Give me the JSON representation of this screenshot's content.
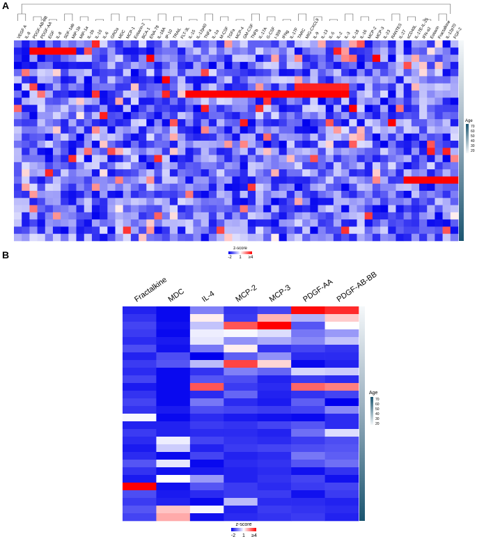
{
  "panel_a": {
    "letter": "A",
    "legend": {
      "title": "z-score",
      "ticks": [
        "-2",
        "1",
        "≥4"
      ]
    },
    "age_legend": {
      "title": "Age",
      "ticks": [
        "70",
        "60",
        "50",
        "40",
        "30",
        "20"
      ]
    }
  },
  "panel_b": {
    "letter": "B",
    "legend": {
      "title": "z-score",
      "ticks": [
        "-2",
        "1",
        "≥4"
      ]
    },
    "age_legend": {
      "title": "Age",
      "ticks": [
        "70",
        "60",
        "50",
        "40",
        "30",
        "20"
      ]
    }
  },
  "colors": {
    "low": "#0000ee",
    "mid": "#ffffff",
    "high": "#ff0000",
    "age_low": "#f5f8fa",
    "age_high": "#1a5570",
    "dendrogram": "#555555"
  },
  "chart_data": [
    {
      "type": "heatmap",
      "panel": "A",
      "value_label": "z-score",
      "color_scale": {
        "min": -2,
        "mid": 1,
        "max": 4
      },
      "columns": [
        "VEGF A",
        "IL-8",
        "PDGF-AB-BB",
        "PDGF-AA",
        "EGF",
        "IL-8",
        "SDF-1ab",
        "MIP-1b",
        "MIP-1a",
        "IL-1b",
        "IL-10",
        "IL-6",
        "GROa",
        "MDC",
        "MCP-1",
        "Eotaxin-2",
        "BCA-1",
        "ENA-78",
        "IL-18A",
        "IP-10",
        "TRAIL",
        "FLT-3L",
        "IL-15",
        "IL-12p40",
        "TNFa",
        "IL-1a",
        "M-CSF",
        "TGFa",
        "MCP-4",
        "GM-CSF",
        "TNFb",
        "IL-17A",
        "G-CSF",
        "I-309",
        "IFNg",
        "IL-17F",
        "TARC",
        "MIG-CXCL9",
        "IL-9",
        "IL-13",
        "IL-5",
        "IL-2",
        "IL-3",
        "IL-18",
        "IL-16",
        "MCP-2",
        "MCP-3",
        "IL-23",
        "RANTES",
        "IL-27",
        "sCD40L",
        "IL-17E-IL-25",
        "IFN-a2",
        "Eotaxin",
        "Fractalkine",
        "IL-12p70",
        "FGF-2"
      ],
      "rows": 28,
      "age_annotation": {
        "title": "Age",
        "range": [
          20,
          70
        ]
      }
    },
    {
      "type": "heatmap",
      "panel": "B",
      "value_label": "z-score",
      "color_scale": {
        "min": -2,
        "mid": 1,
        "max": 4
      },
      "columns": [
        "Fractalkine",
        "MDC",
        "IL-4",
        "MCP-2",
        "MCP-3",
        "PDGF-AA",
        "PDGF-AB-BB"
      ],
      "rows": 28,
      "age_annotation": {
        "title": "Age",
        "range": [
          20,
          70
        ]
      },
      "values": [
        [
          -1.6,
          -1.9,
          -0.5,
          -1.4,
          -1.2,
          3.9,
          3.5
        ],
        [
          -1.4,
          -1.9,
          1.2,
          -1.3,
          1.9,
          0.1,
          1.6
        ],
        [
          -1.2,
          -1.8,
          0.3,
          3.0,
          4.0,
          -1.0,
          1.0
        ],
        [
          -1.3,
          -1.9,
          0.8,
          0.9,
          0.6,
          -0.6,
          -0.2
        ],
        [
          -1.5,
          -1.7,
          0.7,
          -0.3,
          0.0,
          -0.4,
          0.3
        ],
        [
          -1.1,
          -1.8,
          -0.6,
          1.2,
          -1.4,
          -1.2,
          -1.4
        ],
        [
          -1.6,
          -1.1,
          -2.0,
          -0.9,
          -0.3,
          -1.5,
          -1.5
        ],
        [
          -1.3,
          -1.0,
          0.2,
          3.2,
          1.5,
          -1.9,
          -1.6
        ],
        [
          -1.5,
          -1.9,
          -1.4,
          -0.5,
          -0.8,
          0.5,
          0.4
        ],
        [
          -1.2,
          -1.9,
          -1.0,
          -1.1,
          -1.6,
          -1.3,
          -1.5
        ],
        [
          -1.7,
          -1.9,
          3.0,
          -1.3,
          -1.5,
          2.8,
          2.5
        ],
        [
          -1.4,
          -1.9,
          -1.5,
          -0.8,
          -1.6,
          -1.4,
          -1.2
        ],
        [
          -1.2,
          -1.9,
          -0.6,
          -1.5,
          -1.7,
          -0.9,
          -2.0
        ],
        [
          -1.4,
          -1.7,
          -1.1,
          -1.2,
          -1.3,
          -1.2,
          -0.4
        ],
        [
          0.9,
          -1.9,
          -1.5,
          -1.7,
          -1.8,
          -1.9,
          -1.5
        ],
        [
          -1.6,
          -1.6,
          -1.3,
          -1.4,
          -1.2,
          -1.0,
          -1.5
        ],
        [
          -1.3,
          -1.6,
          -1.5,
          -1.5,
          -1.6,
          -0.7,
          0.6
        ],
        [
          -1.5,
          0.8,
          -1.2,
          -1.4,
          -1.5,
          -1.3,
          -1.1
        ],
        [
          -1.7,
          0.4,
          -1.6,
          -1.3,
          -1.2,
          -1.1,
          -1.0
        ],
        [
          -1.5,
          -1.9,
          -1.2,
          -1.6,
          -1.5,
          -0.6,
          -0.9
        ],
        [
          -1.0,
          0.7,
          -1.9,
          -1.5,
          -1.4,
          -1.0,
          -0.7
        ],
        [
          -1.4,
          -1.8,
          -1.7,
          -1.6,
          -1.5,
          -1.8,
          -1.4
        ],
        [
          -1.7,
          1.0,
          -0.2,
          -1.6,
          -1.4,
          -1.2,
          -1.8
        ],
        [
          4.0,
          -1.8,
          -1.0,
          -1.3,
          -1.5,
          -1.3,
          -1.2
        ],
        [
          -1.1,
          -1.7,
          -1.5,
          -1.3,
          -1.3,
          -1.8,
          -1.3
        ],
        [
          -1.3,
          -1.6,
          -1.9,
          0.2,
          -1.5,
          -1.5,
          -1.6
        ],
        [
          -1.0,
          1.7,
          0.9,
          -1.6,
          -1.3,
          -1.4,
          -1.5
        ],
        [
          -1.2,
          2.0,
          -1.8,
          -1.5,
          -1.4,
          -1.3,
          -1.6
        ]
      ]
    }
  ]
}
